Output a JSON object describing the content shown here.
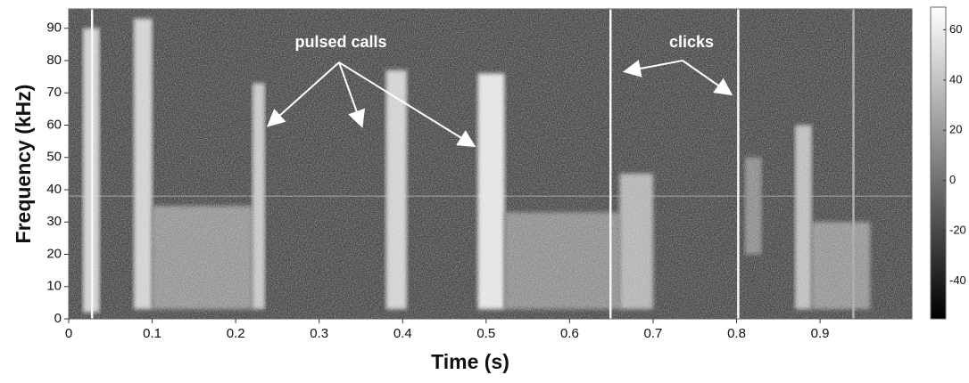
{
  "chart_data": {
    "type": "spectrogram",
    "xlabel": "Time (s)",
    "ylabel": "Frequency (kHz)",
    "xlim": [
      0,
      1.01
    ],
    "ylim": [
      0,
      96
    ],
    "xticks": [
      0,
      0.1,
      0.2,
      0.3,
      0.4,
      0.5,
      0.6,
      0.7,
      0.8,
      0.9
    ],
    "yticks": [
      0,
      10,
      20,
      30,
      40,
      50,
      60,
      70,
      80,
      90
    ],
    "clim": [
      -55,
      69
    ],
    "cticks": [
      -40,
      -20,
      0,
      20,
      40,
      60
    ],
    "background_level": -22,
    "calls": [
      {
        "start": 0.017,
        "end": 0.037,
        "fmin": 2,
        "fmax": 90,
        "level": 45
      },
      {
        "start": 0.078,
        "end": 0.1,
        "fmin": 3,
        "fmax": 93,
        "level": 45
      },
      {
        "start": 0.1,
        "end": 0.22,
        "fmin": 3,
        "fmax": 35,
        "level": 15
      },
      {
        "start": 0.22,
        "end": 0.235,
        "fmin": 3,
        "fmax": 73,
        "level": 40
      },
      {
        "start": 0.38,
        "end": 0.405,
        "fmin": 3,
        "fmax": 77,
        "level": 45
      },
      {
        "start": 0.49,
        "end": 0.522,
        "fmin": 3,
        "fmax": 76,
        "level": 55
      },
      {
        "start": 0.522,
        "end": 0.66,
        "fmin": 3,
        "fmax": 33,
        "level": 12
      },
      {
        "start": 0.66,
        "end": 0.7,
        "fmin": 3,
        "fmax": 45,
        "level": 30
      },
      {
        "start": 0.81,
        "end": 0.83,
        "fmin": 20,
        "fmax": 50,
        "level": 10
      },
      {
        "start": 0.87,
        "end": 0.89,
        "fmin": 3,
        "fmax": 60,
        "level": 35
      },
      {
        "start": 0.89,
        "end": 0.96,
        "fmin": 3,
        "fmax": 30,
        "level": 15
      }
    ],
    "clicks": [
      {
        "time": 0.028,
        "level": 65
      },
      {
        "time": 0.649,
        "level": 65
      },
      {
        "time": 0.802,
        "level": 65
      },
      {
        "time": 0.94,
        "level": 30
      }
    ],
    "tones": [
      {
        "freq": 38,
        "level": 5
      }
    ],
    "annotations": [
      "pulsed calls",
      "clicks"
    ]
  }
}
